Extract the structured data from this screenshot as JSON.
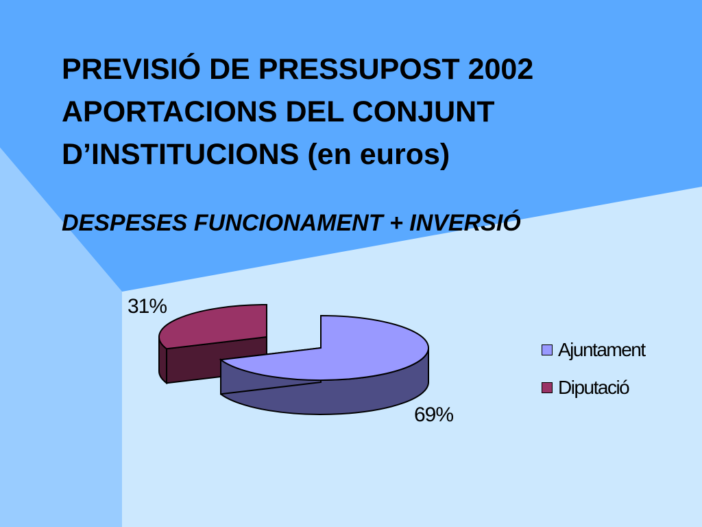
{
  "title_lines": [
    "PREVISIÓ DE PRESSUPOST 2002",
    "APORTACIONS DEL CONJUNT",
    "D’INSTITUCIONS (en euros)"
  ],
  "subtitle": "DESPESES FUNCIONAMENT + INVERSIÓ",
  "colors": {
    "background_light": "#cce8fe",
    "background_band": "#5aa9ff",
    "background_side": "#99ccff",
    "ajuntament_top": "#9999ff",
    "ajuntament_side": "#4d4d85",
    "diputacio_top": "#993366",
    "diputacio_side": "#4d1a33"
  },
  "chart_data": {
    "type": "pie",
    "style": "3d-exploded",
    "slices": [
      {
        "name": "Ajuntament",
        "value": 69,
        "label": "69%"
      },
      {
        "name": "Diputació",
        "value": 31,
        "label": "31%"
      }
    ],
    "legend": {
      "placement": "right",
      "entries": [
        "Ajuntament",
        "Diputació"
      ]
    }
  }
}
